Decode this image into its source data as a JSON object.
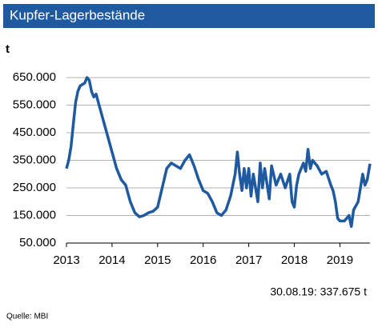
{
  "chart_data": {
    "type": "line",
    "title": "Kupfer-Lagerbestände",
    "y_label": "t",
    "annotation": "30.08.19: 337.675 t",
    "source": "Quelle: MBI",
    "color": "#1f5aa0",
    "grid": true,
    "xlim": [
      2013,
      2019.66
    ],
    "xticks": [
      2013,
      2014,
      2015,
      2016,
      2017,
      2018,
      2019
    ],
    "ylim": [
      50000,
      650000
    ],
    "yticks": [
      {
        "value": 50000,
        "label": "50.000"
      },
      {
        "value": 150000,
        "label": "150.000"
      },
      {
        "value": 250000,
        "label": "250.000"
      },
      {
        "value": 350000,
        "label": "350.000"
      },
      {
        "value": 450000,
        "label": "450.000"
      },
      {
        "value": 550000,
        "label": "550.000"
      },
      {
        "value": 650000,
        "label": "650.000"
      }
    ],
    "x": [
      2013.0,
      2013.05,
      2013.1,
      2013.15,
      2013.2,
      2013.25,
      2013.3,
      2013.4,
      2013.45,
      2013.5,
      2013.55,
      2013.6,
      2013.65,
      2013.7,
      2013.8,
      2013.9,
      2014.0,
      2014.1,
      2014.2,
      2014.3,
      2014.4,
      2014.5,
      2014.6,
      2014.7,
      2014.8,
      2014.9,
      2015.0,
      2015.1,
      2015.2,
      2015.3,
      2015.4,
      2015.5,
      2015.6,
      2015.7,
      2015.8,
      2015.9,
      2016.0,
      2016.1,
      2016.2,
      2016.3,
      2016.4,
      2016.5,
      2016.6,
      2016.7,
      2016.75,
      2016.8,
      2016.85,
      2016.9,
      2016.95,
      2017.0,
      2017.05,
      2017.1,
      2017.2,
      2017.25,
      2017.3,
      2017.35,
      2017.45,
      2017.5,
      2017.6,
      2017.7,
      2017.8,
      2017.9,
      2017.95,
      2018.0,
      2018.05,
      2018.1,
      2018.2,
      2018.25,
      2018.3,
      2018.35,
      2018.4,
      2018.5,
      2018.6,
      2018.7,
      2018.8,
      2018.85,
      2018.9,
      2018.95,
      2019.0,
      2019.1,
      2019.2,
      2019.25,
      2019.3,
      2019.4,
      2019.5,
      2019.55,
      2019.6,
      2019.66
    ],
    "values": [
      320000,
      350000,
      400000,
      480000,
      560000,
      600000,
      620000,
      630000,
      650000,
      640000,
      600000,
      580000,
      590000,
      560000,
      500000,
      440000,
      380000,
      320000,
      280000,
      260000,
      200000,
      160000,
      145000,
      150000,
      160000,
      165000,
      180000,
      250000,
      320000,
      340000,
      330000,
      320000,
      350000,
      370000,
      330000,
      280000,
      240000,
      230000,
      200000,
      160000,
      150000,
      170000,
      220000,
      300000,
      380000,
      300000,
      240000,
      320000,
      250000,
      320000,
      220000,
      300000,
      200000,
      340000,
      250000,
      320000,
      210000,
      330000,
      260000,
      300000,
      250000,
      300000,
      200000,
      180000,
      260000,
      300000,
      340000,
      310000,
      390000,
      320000,
      350000,
      330000,
      300000,
      310000,
      260000,
      240000,
      200000,
      140000,
      130000,
      130000,
      150000,
      110000,
      170000,
      200000,
      300000,
      260000,
      280000,
      337675
    ]
  }
}
